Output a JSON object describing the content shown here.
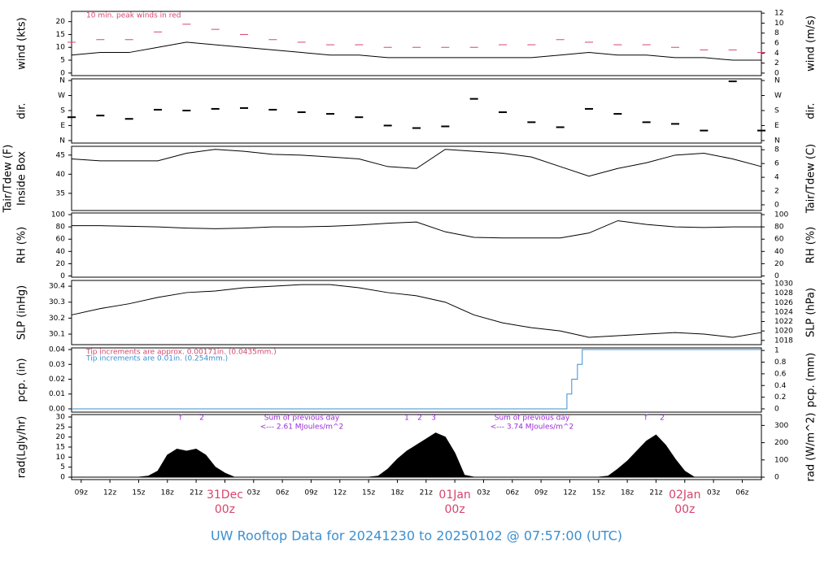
{
  "chart_data": [
    {
      "type": "line",
      "ylabel": "wind (kts)",
      "y2label": "wind (m/s)",
      "xlim": [
        8,
        80
      ],
      "ylim": [
        -1,
        24
      ],
      "yticks": [
        0,
        5,
        10,
        15,
        20
      ],
      "y2lim": [
        -0.5,
        12.35
      ],
      "y2ticks": [
        0,
        2,
        4,
        6,
        8,
        10,
        12
      ],
      "x": [
        8,
        11,
        14,
        17,
        20,
        23,
        26,
        29,
        32,
        35,
        38,
        41,
        44,
        47,
        50,
        53,
        56,
        59,
        62,
        65,
        68,
        71,
        74,
        77,
        80
      ],
      "series": [
        {
          "name": "wind",
          "color": "#000000",
          "values": [
            7,
            8,
            8,
            10,
            12,
            11,
            10,
            9,
            8,
            7,
            7,
            6,
            6,
            6,
            6,
            6,
            6,
            7,
            8,
            7,
            7,
            6,
            6,
            5,
            5
          ]
        },
        {
          "name": "peak",
          "color": "#d6456b",
          "marker": "dash",
          "values": [
            12,
            13,
            13,
            16,
            19,
            17,
            15,
            13,
            12,
            11,
            11,
            10,
            10,
            10,
            10,
            11,
            11,
            13,
            12,
            11,
            11,
            10,
            9,
            9,
            8
          ]
        }
      ],
      "annotations": [
        {
          "text": "10 min. peak winds in red",
          "color": "#d6456b"
        }
      ]
    },
    {
      "type": "scatter",
      "ylabel": "dir.",
      "y2label": "dir.",
      "xlim": [
        8,
        80
      ],
      "ylim": [
        -15,
        370
      ],
      "yticks": [
        {
          "value": 0,
          "label": "N"
        },
        {
          "value": 90,
          "label": "E"
        },
        {
          "value": 180,
          "label": "S"
        },
        {
          "value": 270,
          "label": "W"
        },
        {
          "value": 360,
          "label": "N"
        }
      ],
      "y2lim": [
        -15,
        370
      ],
      "y2ticks": [
        {
          "value": 0,
          "label": "N"
        },
        {
          "value": 90,
          "label": "E"
        },
        {
          "value": 180,
          "label": "S"
        },
        {
          "value": 270,
          "label": "W"
        },
        {
          "value": 360,
          "label": "N"
        }
      ],
      "x": [
        8,
        11,
        14,
        17,
        20,
        23,
        26,
        29,
        32,
        35,
        38,
        41,
        44,
        47,
        50,
        53,
        56,
        59,
        62,
        65,
        68,
        71,
        74,
        77,
        80
      ],
      "series": [
        {
          "name": "dir",
          "color": "#000000",
          "marker": "dash",
          "values": [
            140,
            150,
            130,
            185,
            180,
            190,
            195,
            185,
            170,
            160,
            140,
            90,
            75,
            85,
            250,
            170,
            110,
            80,
            190,
            160,
            110,
            100,
            60,
            355,
            60
          ]
        }
      ]
    },
    {
      "type": "line",
      "ylabel": "Tair/Tdew (F)",
      "ylabel_sub": "Inside Box",
      "y2label": "Tair/Tdew (C)",
      "xlim": [
        8,
        80
      ],
      "ylim": [
        30.5,
        47.3
      ],
      "yticks": [
        35,
        40,
        45
      ],
      "y2lim": [
        -0.83,
        8.5
      ],
      "y2ticks": [
        0,
        2,
        4,
        6,
        8
      ],
      "x": [
        8,
        11,
        14,
        17,
        20,
        23,
        26,
        29,
        32,
        35,
        38,
        41,
        44,
        47,
        50,
        53,
        56,
        59,
        62,
        65,
        68,
        71,
        74,
        77,
        80
      ],
      "series": [
        {
          "name": "Tair",
          "color": "#000000",
          "values": [
            44,
            43.5,
            43.5,
            43.5,
            45.5,
            46.5,
            46,
            45.2,
            45,
            44.5,
            44,
            42,
            41.5,
            46.5,
            46,
            45.5,
            44.5,
            42,
            39.5,
            41.5,
            43,
            45,
            45.5,
            44,
            42
          ]
        }
      ]
    },
    {
      "type": "line",
      "ylabel": "RH (%)",
      "y2label": "RH (%)",
      "xlim": [
        8,
        80
      ],
      "ylim": [
        -2,
        102.7
      ],
      "yticks": [
        0,
        20,
        40,
        60,
        80,
        100
      ],
      "y2lim": [
        -2,
        102.7
      ],
      "y2ticks": [
        0,
        20,
        40,
        60,
        80,
        100
      ],
      "x": [
        8,
        11,
        14,
        17,
        20,
        23,
        26,
        29,
        32,
        35,
        38,
        41,
        44,
        47,
        50,
        53,
        56,
        59,
        62,
        65,
        68,
        71,
        74,
        77,
        80
      ],
      "series": [
        {
          "name": "RH",
          "color": "#000000",
          "values": [
            82,
            82,
            81,
            80,
            78,
            77,
            78,
            80,
            80,
            81,
            83,
            86,
            88,
            72,
            63,
            62,
            62,
            62,
            70,
            90,
            84,
            80,
            79,
            80,
            80
          ]
        }
      ]
    },
    {
      "type": "line",
      "ylabel": "SLP (inHg)",
      "y2label": "SLP (hPa)",
      "xlim": [
        8,
        80
      ],
      "ylim": [
        30.034,
        30.436
      ],
      "yticks": [
        30.1,
        30.2,
        30.3,
        30.4
      ],
      "y2lim": [
        1017.1,
        1030.7
      ],
      "y2ticks": [
        1018,
        1020,
        1022,
        1024,
        1026,
        1028,
        1030
      ],
      "x": [
        8,
        11,
        14,
        17,
        20,
        23,
        26,
        29,
        32,
        35,
        38,
        41,
        44,
        47,
        50,
        53,
        56,
        59,
        62,
        65,
        68,
        71,
        74,
        77,
        80
      ],
      "series": [
        {
          "name": "SLP",
          "color": "#000000",
          "values": [
            30.22,
            30.26,
            30.29,
            30.33,
            30.36,
            30.37,
            30.39,
            30.4,
            30.41,
            30.41,
            30.39,
            30.36,
            30.34,
            30.3,
            30.22,
            30.17,
            30.14,
            30.12,
            30.08,
            30.09,
            30.1,
            30.11,
            30.1,
            30.08,
            30.11
          ]
        }
      ]
    },
    {
      "type": "step",
      "ylabel": "pcp. (in)",
      "y2label": "pcp. (mm)",
      "xlim": [
        8,
        80
      ],
      "ylim": [
        -0.0022,
        0.0411
      ],
      "yticks": [
        {
          "value": 0,
          "label": "0.00"
        },
        0.01,
        0.02,
        0.03,
        0.04
      ],
      "y2lim": [
        -0.056,
        1.044
      ],
      "y2ticks": [
        0,
        0.2,
        0.4,
        0.6,
        0.8,
        1
      ],
      "x": [
        8,
        59.7,
        60.2,
        60.8,
        61.3,
        80
      ],
      "series": [
        {
          "name": "pcp",
          "color": "#3a8fd1",
          "values": [
            0,
            0.01,
            0.02,
            0.03,
            0.04,
            0.04
          ]
        }
      ],
      "annotations": [
        {
          "text": "Tip increments are approx. 0.00171in. (0.0435mm.)",
          "color": "#d6456b"
        },
        {
          "text": "Tip increments are 0.01in. (0.254mm.)",
          "color": "#3a8fd1"
        }
      ]
    },
    {
      "type": "area",
      "ylabel": "rad(Lgly/hr)",
      "y2label": "rad (W/m^2)",
      "xlim": [
        8,
        80
      ],
      "ylim": [
        -1.2,
        31.2
      ],
      "yticks": [
        0,
        5,
        10,
        15,
        20,
        25,
        30
      ],
      "y2lim": [
        -14,
        363
      ],
      "y2ticks": [
        0,
        100,
        200,
        300
      ],
      "xticks": [
        {
          "value": 9,
          "label": "09z"
        },
        {
          "value": 12,
          "label": "12z"
        },
        {
          "value": 15,
          "label": "15z"
        },
        {
          "value": 18,
          "label": "18z"
        },
        {
          "value": 21,
          "label": "21z"
        },
        {
          "value": 27,
          "label": "03z"
        },
        {
          "value": 30,
          "label": "06z"
        },
        {
          "value": 33,
          "label": "09z"
        },
        {
          "value": 36,
          "label": "12z"
        },
        {
          "value": 39,
          "label": "15z"
        },
        {
          "value": 42,
          "label": "18z"
        },
        {
          "value": 45,
          "label": "21z"
        },
        {
          "value": 51,
          "label": "03z"
        },
        {
          "value": 54,
          "label": "06z"
        },
        {
          "value": 57,
          "label": "09z"
        },
        {
          "value": 60,
          "label": "12z"
        },
        {
          "value": 63,
          "label": "15z"
        },
        {
          "value": 66,
          "label": "18z"
        },
        {
          "value": 69,
          "label": "21z"
        },
        {
          "value": 75,
          "label": "03z"
        },
        {
          "value": 78,
          "label": "06z"
        }
      ],
      "date_labels": [
        {
          "value": 24,
          "date": "31Dec",
          "time": "00z"
        },
        {
          "value": 48,
          "date": "01Jan",
          "time": "00z"
        },
        {
          "value": 72,
          "date": "02Jan",
          "time": "00z"
        }
      ],
      "x": [
        8,
        9,
        10,
        11,
        12,
        13,
        14,
        15,
        16,
        17,
        18,
        19,
        20,
        21,
        22,
        23,
        24,
        25,
        26,
        27,
        28,
        29,
        30,
        31,
        32,
        33,
        34,
        35,
        36,
        37,
        38,
        39,
        40,
        41,
        42,
        43,
        44,
        45,
        46,
        47,
        48,
        49,
        50,
        51,
        52,
        53,
        54,
        55,
        56,
        57,
        58,
        59,
        60,
        61,
        62,
        63,
        64,
        65,
        66,
        67,
        68,
        69,
        70,
        71,
        72,
        73,
        74,
        75,
        76,
        77,
        78,
        79,
        80
      ],
      "series": [
        {
          "name": "rad",
          "color": "#000000",
          "values": [
            0,
            0,
            0,
            0,
            0,
            0,
            0,
            0,
            0.5,
            3,
            11,
            14,
            13,
            14,
            11,
            5,
            2,
            0,
            0,
            0,
            0,
            0,
            0,
            0,
            0,
            0,
            0,
            0,
            0,
            0,
            0,
            0,
            0.5,
            4,
            9,
            13,
            16,
            19,
            22,
            20,
            12,
            1,
            0,
            0,
            0,
            0,
            0,
            0,
            0,
            0,
            0,
            0,
            0,
            0,
            0,
            0,
            0.5,
            4,
            8,
            13,
            18,
            21,
            16,
            9,
            3,
            0,
            0,
            0,
            0,
            0,
            0,
            0,
            0
          ]
        }
      ],
      "annotations": [
        {
          "text": "f",
          "color": "#9a2ad6"
        },
        {
          "text": "2",
          "color": "#9a2ad6"
        },
        {
          "text": "Sum of previous day",
          "color": "#9a2ad6"
        },
        {
          "text": "<--- 2.61 MJoules/m^2",
          "color": "#9a2ad6"
        },
        {
          "text": "1",
          "color": "#9a2ad6"
        },
        {
          "text": "2",
          "color": "#9a2ad6"
        },
        {
          "text": "3",
          "color": "#9a2ad6"
        },
        {
          "text": "Sum of previous day",
          "color": "#9a2ad6"
        },
        {
          "text": "<--- 3.74 MJoules/m^2",
          "color": "#9a2ad6"
        },
        {
          "text": "f",
          "color": "#9a2ad6"
        },
        {
          "text": "2",
          "color": "#9a2ad6"
        }
      ]
    }
  ],
  "title": "UW Rooftop Data for 20241230  to  20250102 @ 07:57:00  (UTC)"
}
